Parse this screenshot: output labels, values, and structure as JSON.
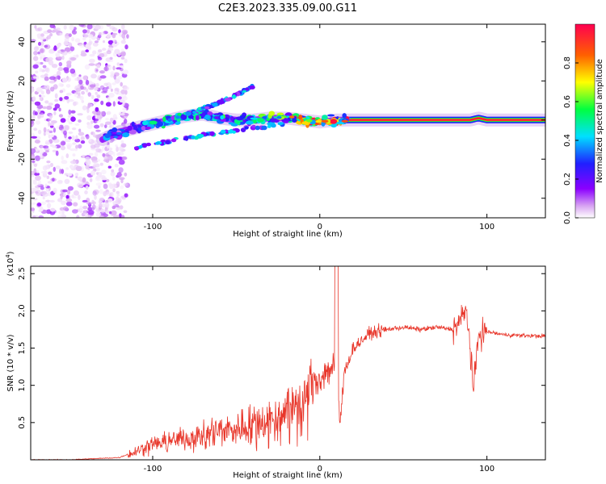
{
  "title": "C2E3.2023.335.09.00.G11",
  "chart_data": [
    {
      "type": "heatmap",
      "xlabel": "Height of straight line (km)",
      "ylabel": "Frequency (Hz)",
      "xlim": [
        -173,
        135
      ],
      "ylim": [
        -50,
        49
      ],
      "x_ticks": [
        -100,
        0,
        100
      ],
      "x_tick_labels": [
        "-100",
        "0",
        "100"
      ],
      "y_ticks": [
        -40,
        -20,
        0,
        20,
        40
      ],
      "y_tick_labels": [
        "-40",
        "-20",
        "0",
        "20",
        "40"
      ],
      "colorbar": {
        "label": "Normalized spectral amplitude",
        "range": [
          0,
          1
        ],
        "ticks": [
          0.0,
          0.2,
          0.4,
          0.6,
          0.8
        ],
        "tick_labels": [
          "0.0",
          "0.2",
          "0.4",
          "0.6",
          "0.8"
        ],
        "colormap": [
          "#ffffff",
          "#d9a6f2",
          "#8b00ff",
          "#2020ff",
          "#00e0ff",
          "#00ff40",
          "#ffff00",
          "#ff6000",
          "#ff0050"
        ]
      },
      "ridge": {
        "x": [
          -135,
          -120,
          -110,
          -100,
          -90,
          -80,
          -70,
          -60,
          -50,
          -40,
          -30,
          -20,
          -10,
          0,
          10,
          20,
          40,
          60,
          80,
          90,
          95,
          100,
          120,
          135
        ],
        "frequency": [
          -12,
          -6,
          -4,
          -2,
          0,
          2,
          3,
          1,
          0,
          0,
          1,
          1,
          0,
          -1,
          0,
          0,
          0,
          0,
          0,
          0,
          1,
          0,
          0,
          0
        ],
        "amplitude": [
          0.5,
          0.35,
          0.45,
          0.5,
          0.55,
          0.5,
          0.5,
          0.55,
          0.55,
          0.6,
          0.6,
          0.7,
          0.8,
          0.85,
          0.85,
          0.9,
          0.9,
          0.92,
          0.92,
          0.9,
          0.85,
          0.9,
          0.9,
          0.9
        ]
      },
      "branches": [
        {
          "x": [
            -80,
            -60,
            -40
          ],
          "frequency": [
            3,
            9,
            17
          ]
        },
        {
          "x": [
            -110,
            -90,
            -70,
            -50,
            -30,
            -20
          ],
          "frequency": [
            -14,
            -11,
            -8,
            -5,
            -3,
            -1
          ]
        }
      ],
      "noise_region": {
        "x_range": [
          -173,
          -115
        ],
        "frequency_range": [
          -50,
          49
        ]
      }
    },
    {
      "type": "line",
      "xlabel": "Height of straight line (km)",
      "ylabel": "SNR (10 * v/v)",
      "y_multiplier": "(x10^4)",
      "y_multiplier_base": "(x10",
      "y_multiplier_exp": "4",
      "xlim": [
        -173,
        135
      ],
      "ylim": [
        0,
        2.6
      ],
      "x_ticks": [
        -100,
        0,
        100
      ],
      "x_tick_labels": [
        "-100",
        "0",
        "100"
      ],
      "y_ticks": [
        0.5,
        1.0,
        1.5,
        2.0,
        2.5
      ],
      "y_tick_labels": [
        "0.5",
        "1.0",
        "1.5",
        "2.0",
        "2.5"
      ],
      "series": [
        {
          "color": "#e8362a",
          "x": [
            -173,
            -150,
            -130,
            -120,
            -112,
            -105,
            -100,
            -90,
            -80,
            -70,
            -60,
            -50,
            -40,
            -30,
            -25,
            -20,
            -15,
            -10,
            -5,
            0,
            5,
            10,
            12,
            15,
            20,
            25,
            30,
            40,
            50,
            60,
            70,
            80,
            85,
            88,
            90,
            92,
            95,
            100,
            110,
            120,
            135
          ],
          "y": [
            0.0,
            0.0,
            0.02,
            0.03,
            0.1,
            0.18,
            0.22,
            0.25,
            0.3,
            0.35,
            0.4,
            0.42,
            0.5,
            0.55,
            0.6,
            0.7,
            0.8,
            0.7,
            1.0,
            1.1,
            1.2,
            1.3,
            0.5,
            1.2,
            1.5,
            1.6,
            1.7,
            1.75,
            1.78,
            1.75,
            1.78,
            1.75,
            1.9,
            2.0,
            1.5,
            0.9,
            1.7,
            1.72,
            1.68,
            1.67,
            1.66
          ]
        }
      ]
    }
  ]
}
